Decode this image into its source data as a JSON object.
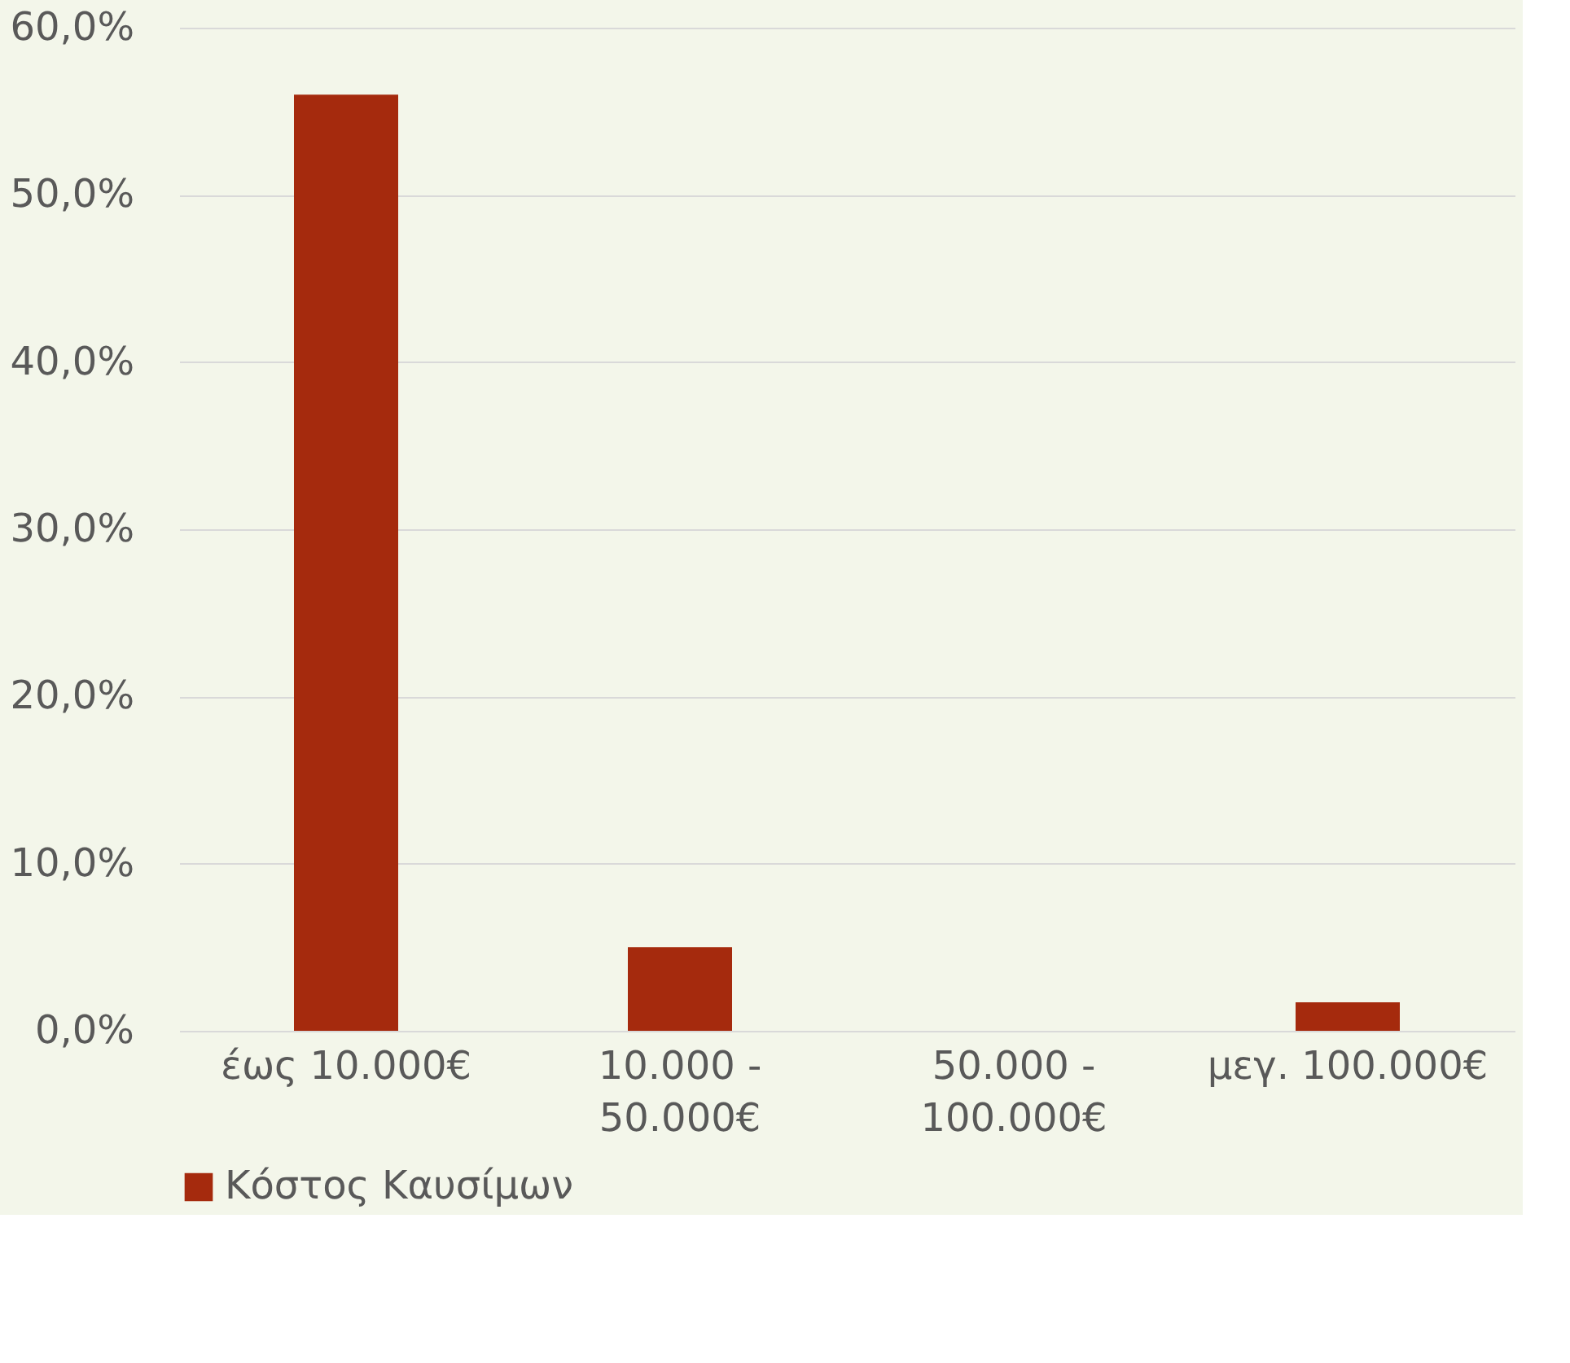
{
  "chart_data": {
    "type": "bar",
    "categories": [
      "έως 10.000€",
      "10.000 - 50.000€",
      "50.000 - 100.000€",
      "μεγ. 100.000€"
    ],
    "series": [
      {
        "name": "Κόστος Καυσίμων",
        "color": "#a52a0d",
        "values": [
          56.0,
          5.0,
          0,
          1.7
        ]
      }
    ],
    "ylim": [
      0,
      60
    ],
    "yticks": [
      {
        "value": 0,
        "label": "0,0%"
      },
      {
        "value": 10,
        "label": "10,0%"
      },
      {
        "value": 20,
        "label": "20,0%"
      },
      {
        "value": 30,
        "label": "30,0%"
      },
      {
        "value": 40,
        "label": "40,0%"
      },
      {
        "value": 50,
        "label": "50,0%"
      },
      {
        "value": 60,
        "label": "60,0%"
      }
    ],
    "grid": "y",
    "legend": "bottom"
  }
}
